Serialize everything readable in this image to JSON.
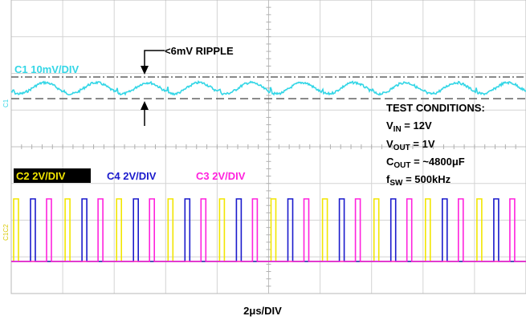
{
  "chart_data": {
    "type": "line",
    "title": "",
    "xlabel": "2μs/DIV",
    "grid": true,
    "x_divisions": 10,
    "y_divisions": 8,
    "series": [
      {
        "name": "C1 10mV/DIV",
        "color": "#33d6e6",
        "description": "output voltage ripple, AC-coupled",
        "ripple_peak_to_peak": "<6mV"
      },
      {
        "name": "C2 2V/DIV",
        "color": "#f2e600",
        "label_background": "#000000"
      },
      {
        "name": "C4 2V/DIV",
        "color": "#1a1acc"
      },
      {
        "name": "C3 2V/DIV",
        "color": "#ff22dd"
      }
    ],
    "switching_frequency_khz": 500,
    "time_per_div_us": 2,
    "annotations": {
      "ripple": "<6mV RIPPLE"
    },
    "test_conditions": {
      "heading": "TEST CONDITIONS:",
      "vin": {
        "sym": "V",
        "sub": "IN",
        "value": " = 12V"
      },
      "vout": {
        "sym": "V",
        "sub": "OUT",
        "value": " = 1V"
      },
      "cout": {
        "sym": "C",
        "sub": "OUT",
        "value": " = ~4800μF"
      },
      "fsw": {
        "sym": "f",
        "sub": "SW",
        "value": " = 500kHz"
      }
    },
    "channel_markers": {
      "c1": "C1",
      "c23": "C1C2"
    }
  }
}
